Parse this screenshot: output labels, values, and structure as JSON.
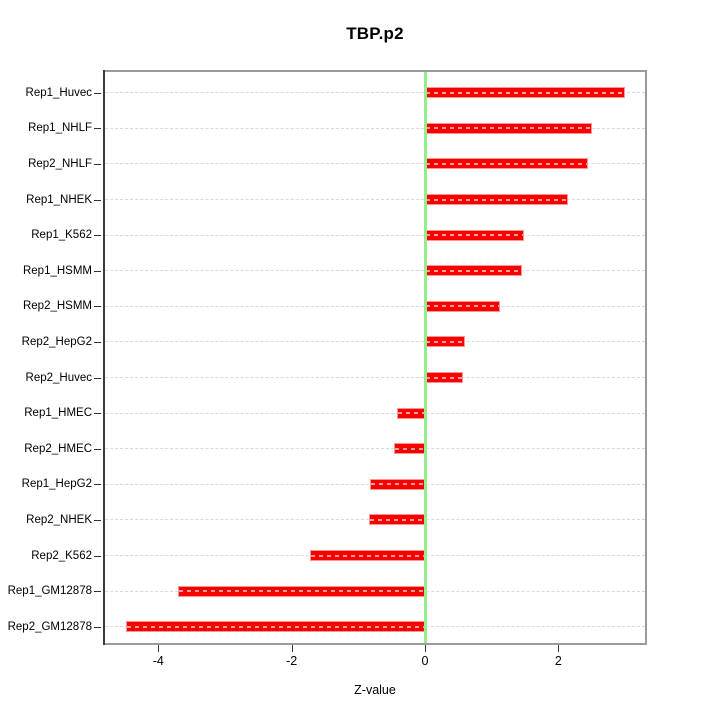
{
  "title": "TBP.p2",
  "chart_data": {
    "type": "bar",
    "orientation": "horizontal",
    "title": "TBP.p2",
    "xlabel": "Z-value",
    "categories": [
      "Rep1_Huvec",
      "Rep1_NHLF",
      "Rep2_NHLF",
      "Rep1_NHEK",
      "Rep1_K562",
      "Rep1_HSMM",
      "Rep2_HSMM",
      "Rep2_HepG2",
      "Rep2_Huvec",
      "Rep1_HMEC",
      "Rep2_HMEC",
      "Rep1_HepG2",
      "Rep2_NHEK",
      "Rep2_K562",
      "Rep1_GM12878",
      "Rep2_GM12878"
    ],
    "values": [
      3.0,
      2.5,
      2.44,
      2.14,
      1.49,
      1.45,
      1.12,
      0.6,
      0.57,
      -0.42,
      -0.46,
      -0.83,
      -0.84,
      -1.72,
      -3.71,
      -4.49
    ],
    "xlim": [
      -4.8,
      3.3
    ],
    "xticks": [
      -4,
      -2,
      0,
      2
    ],
    "xtick_labels": [
      "-4",
      "-2",
      "0",
      "2"
    ],
    "grid": "horizontal-dashed",
    "zero_line_value": 0,
    "legend": "none",
    "colors": {
      "bar_fill": "#F70000",
      "bar_border": "#FF9494",
      "zero_line": "#94EE8E",
      "grid_line": "#D9D9D9",
      "box_border": "#9B9B9B",
      "axis_text": "#000000"
    }
  }
}
